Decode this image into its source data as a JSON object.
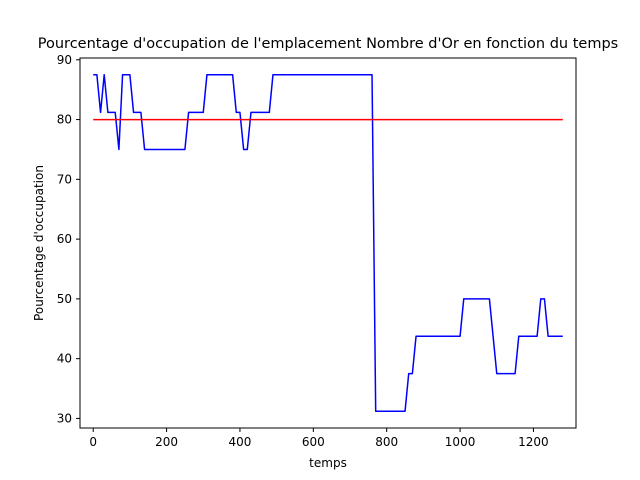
{
  "chart_data": {
    "type": "line",
    "title": "Pourcentage d'occupation de l'emplacement Nombre d'Or en fonction du temps",
    "xlabel": "temps",
    "ylabel": "Pourcentage d'occupation",
    "xlim": [
      -36,
      1316
    ],
    "ylim": [
      28.4,
      90.3
    ],
    "xticks": [
      0,
      200,
      400,
      600,
      800,
      1000,
      1200
    ],
    "yticks": [
      30,
      40,
      50,
      60,
      70,
      80,
      90
    ],
    "grid": false,
    "legend": "none",
    "series": [
      {
        "color": "#0000ff",
        "x": [
          0,
          10,
          20,
          30,
          40,
          50,
          60,
          70,
          80,
          90,
          100,
          110,
          120,
          130,
          140,
          150,
          250,
          260,
          270,
          300,
          310,
          320,
          380,
          390,
          400,
          410,
          420,
          430,
          440,
          480,
          490,
          500,
          760,
          770,
          780,
          850,
          860,
          870,
          880,
          1000,
          1010,
          1020,
          1080,
          1090,
          1100,
          1150,
          1160,
          1170,
          1210,
          1220,
          1230,
          1240,
          1250,
          1280
        ],
        "y": [
          87.5,
          87.5,
          81.2,
          87.5,
          81.2,
          81.2,
          81.2,
          75.0,
          87.5,
          87.5,
          87.5,
          81.2,
          81.2,
          81.2,
          75.0,
          75.0,
          75.0,
          81.2,
          81.2,
          81.2,
          87.5,
          87.5,
          87.5,
          81.2,
          81.2,
          75.0,
          75.0,
          81.2,
          81.2,
          81.2,
          87.5,
          87.5,
          87.5,
          31.2,
          31.2,
          31.2,
          37.5,
          37.5,
          43.75,
          43.75,
          50.0,
          50.0,
          50.0,
          43.75,
          37.5,
          37.5,
          43.75,
          43.75,
          43.75,
          50.0,
          50.0,
          43.75,
          43.75,
          43.75
        ]
      },
      {
        "color": "#ff0000",
        "x": [
          0,
          1280
        ],
        "y": [
          80,
          80
        ]
      }
    ]
  }
}
